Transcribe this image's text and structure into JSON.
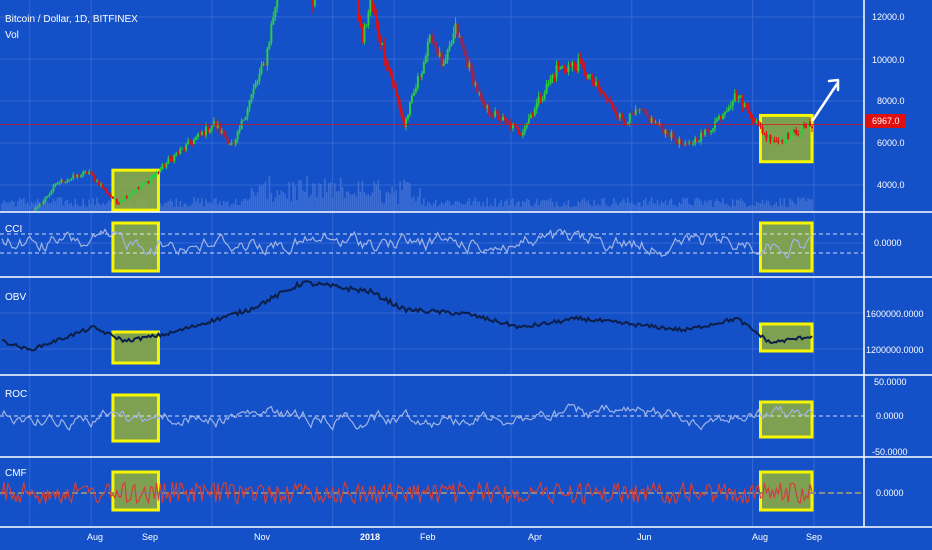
{
  "chart_data": [
    {
      "type": "candlestick",
      "title": "Bitcoin / Dollar, 1D, BITFINEX",
      "subtitle": "Vol",
      "price_ticks": [
        "12000.0",
        "10000.0",
        "8000.0",
        "6000.0",
        "4000.0"
      ],
      "last_price_label": "6967.0",
      "ylim": [
        2600,
        13000
      ],
      "anchors": [
        {
          "date": "2017-07-18",
          "close": 2300
        },
        {
          "date": "2017-08-05",
          "close": 3000
        },
        {
          "date": "2017-08-15",
          "close": 4200
        },
        {
          "date": "2017-08-31",
          "close": 4700
        },
        {
          "date": "2017-09-14",
          "close": 3250
        },
        {
          "date": "2017-09-30",
          "close": 4300
        },
        {
          "date": "2017-10-12",
          "close": 5400
        },
        {
          "date": "2017-10-20",
          "close": 6000
        },
        {
          "date": "2017-11-02",
          "close": 7000
        },
        {
          "date": "2017-11-12",
          "close": 5900
        },
        {
          "date": "2017-11-20",
          "close": 8100
        },
        {
          "date": "2017-11-28",
          "close": 10000
        },
        {
          "date": "2017-12-07",
          "close": 14800
        },
        {
          "date": "2017-12-17",
          "close": 19300
        },
        {
          "date": "2017-12-22",
          "close": 13000
        },
        {
          "date": "2017-12-29",
          "close": 14400
        },
        {
          "date": "2018-01-06",
          "close": 17000
        },
        {
          "date": "2018-01-16",
          "close": 11000
        },
        {
          "date": "2018-01-20",
          "close": 12700
        },
        {
          "date": "2018-02-06",
          "close": 6900
        },
        {
          "date": "2018-02-20",
          "close": 11200
        },
        {
          "date": "2018-02-26",
          "close": 9600
        },
        {
          "date": "2018-03-04",
          "close": 11500
        },
        {
          "date": "2018-03-18",
          "close": 7800
        },
        {
          "date": "2018-04-06",
          "close": 6600
        },
        {
          "date": "2018-04-24",
          "close": 9600
        },
        {
          "date": "2018-05-05",
          "close": 9800
        },
        {
          "date": "2018-05-28",
          "close": 7100
        },
        {
          "date": "2018-06-05",
          "close": 7600
        },
        {
          "date": "2018-06-28",
          "close": 5900
        },
        {
          "date": "2018-07-10",
          "close": 6700
        },
        {
          "date": "2018-07-24",
          "close": 8400
        },
        {
          "date": "2018-08-08",
          "close": 6400
        },
        {
          "date": "2018-08-14",
          "close": 6200
        },
        {
          "date": "2018-08-30",
          "close": 6967
        }
      ]
    },
    {
      "type": "line",
      "title": "CCI",
      "y_ticks": [
        "0.0000"
      ],
      "reference_lines": [
        "upper",
        "lower"
      ]
    },
    {
      "type": "line",
      "title": "OBV",
      "y_ticks": [
        "1600000.0000",
        "1200000.0000"
      ],
      "anchors": [
        {
          "date": "2017-07-18",
          "value": 1300000
        },
        {
          "date": "2017-08-01",
          "value": 1200000
        },
        {
          "date": "2017-09-02",
          "value": 1450000
        },
        {
          "date": "2017-09-18",
          "value": 1300000
        },
        {
          "date": "2017-10-10",
          "value": 1380000
        },
        {
          "date": "2017-11-20",
          "value": 1650000
        },
        {
          "date": "2017-12-17",
          "value": 1950000
        },
        {
          "date": "2018-01-20",
          "value": 1850000
        },
        {
          "date": "2018-02-06",
          "value": 1650000
        },
        {
          "date": "2018-03-10",
          "value": 1600000
        },
        {
          "date": "2018-04-06",
          "value": 1450000
        },
        {
          "date": "2018-05-05",
          "value": 1550000
        },
        {
          "date": "2018-06-28",
          "value": 1420000
        },
        {
          "date": "2018-07-24",
          "value": 1550000
        },
        {
          "date": "2018-08-10",
          "value": 1280000
        },
        {
          "date": "2018-08-30",
          "value": 1350000
        }
      ]
    },
    {
      "type": "line",
      "title": "ROC",
      "y_ticks": [
        "50.0000",
        "0.0000",
        "-50.0000"
      ]
    },
    {
      "type": "line",
      "title": "CMF",
      "y_ticks": [
        "0.0000"
      ]
    }
  ],
  "x_axis": {
    "labels": [
      {
        "date": "2017-08-01",
        "text": "Aug",
        "bold": false
      },
      {
        "date": "2017-09-01",
        "text": "Sep",
        "bold": false
      },
      {
        "date": "2017-11-01",
        "text": "Nov",
        "bold": false
      },
      {
        "date": "2018-01-01",
        "text": "2018",
        "bold": true
      },
      {
        "date": "2018-02-01",
        "text": "Feb",
        "bold": false
      },
      {
        "date": "2018-04-01",
        "text": "Apr",
        "bold": false
      },
      {
        "date": "2018-06-01",
        "text": "Jun",
        "bold": false
      },
      {
        "date": "2018-08-01",
        "text": "Aug",
        "bold": false
      },
      {
        "date": "2018-09-01",
        "text": "Sep",
        "bold": false
      }
    ]
  },
  "highlights": [
    {
      "from": "2017-09-12",
      "to": "2017-10-05"
    },
    {
      "from": "2018-08-05",
      "to": "2018-08-31"
    }
  ],
  "colors": {
    "background": "#1450c8",
    "up_candle": "#2ecc40",
    "down_candle": "#e01010",
    "price_label_bg": "#e01010",
    "highlight_fill": "#8fae3c",
    "highlight_stroke": "#f6f600",
    "indicator_line": "#9fb4e6",
    "obv_line": "#0c1f4a",
    "cmf_line": "#d0403a",
    "arrow": "#ffffff"
  }
}
